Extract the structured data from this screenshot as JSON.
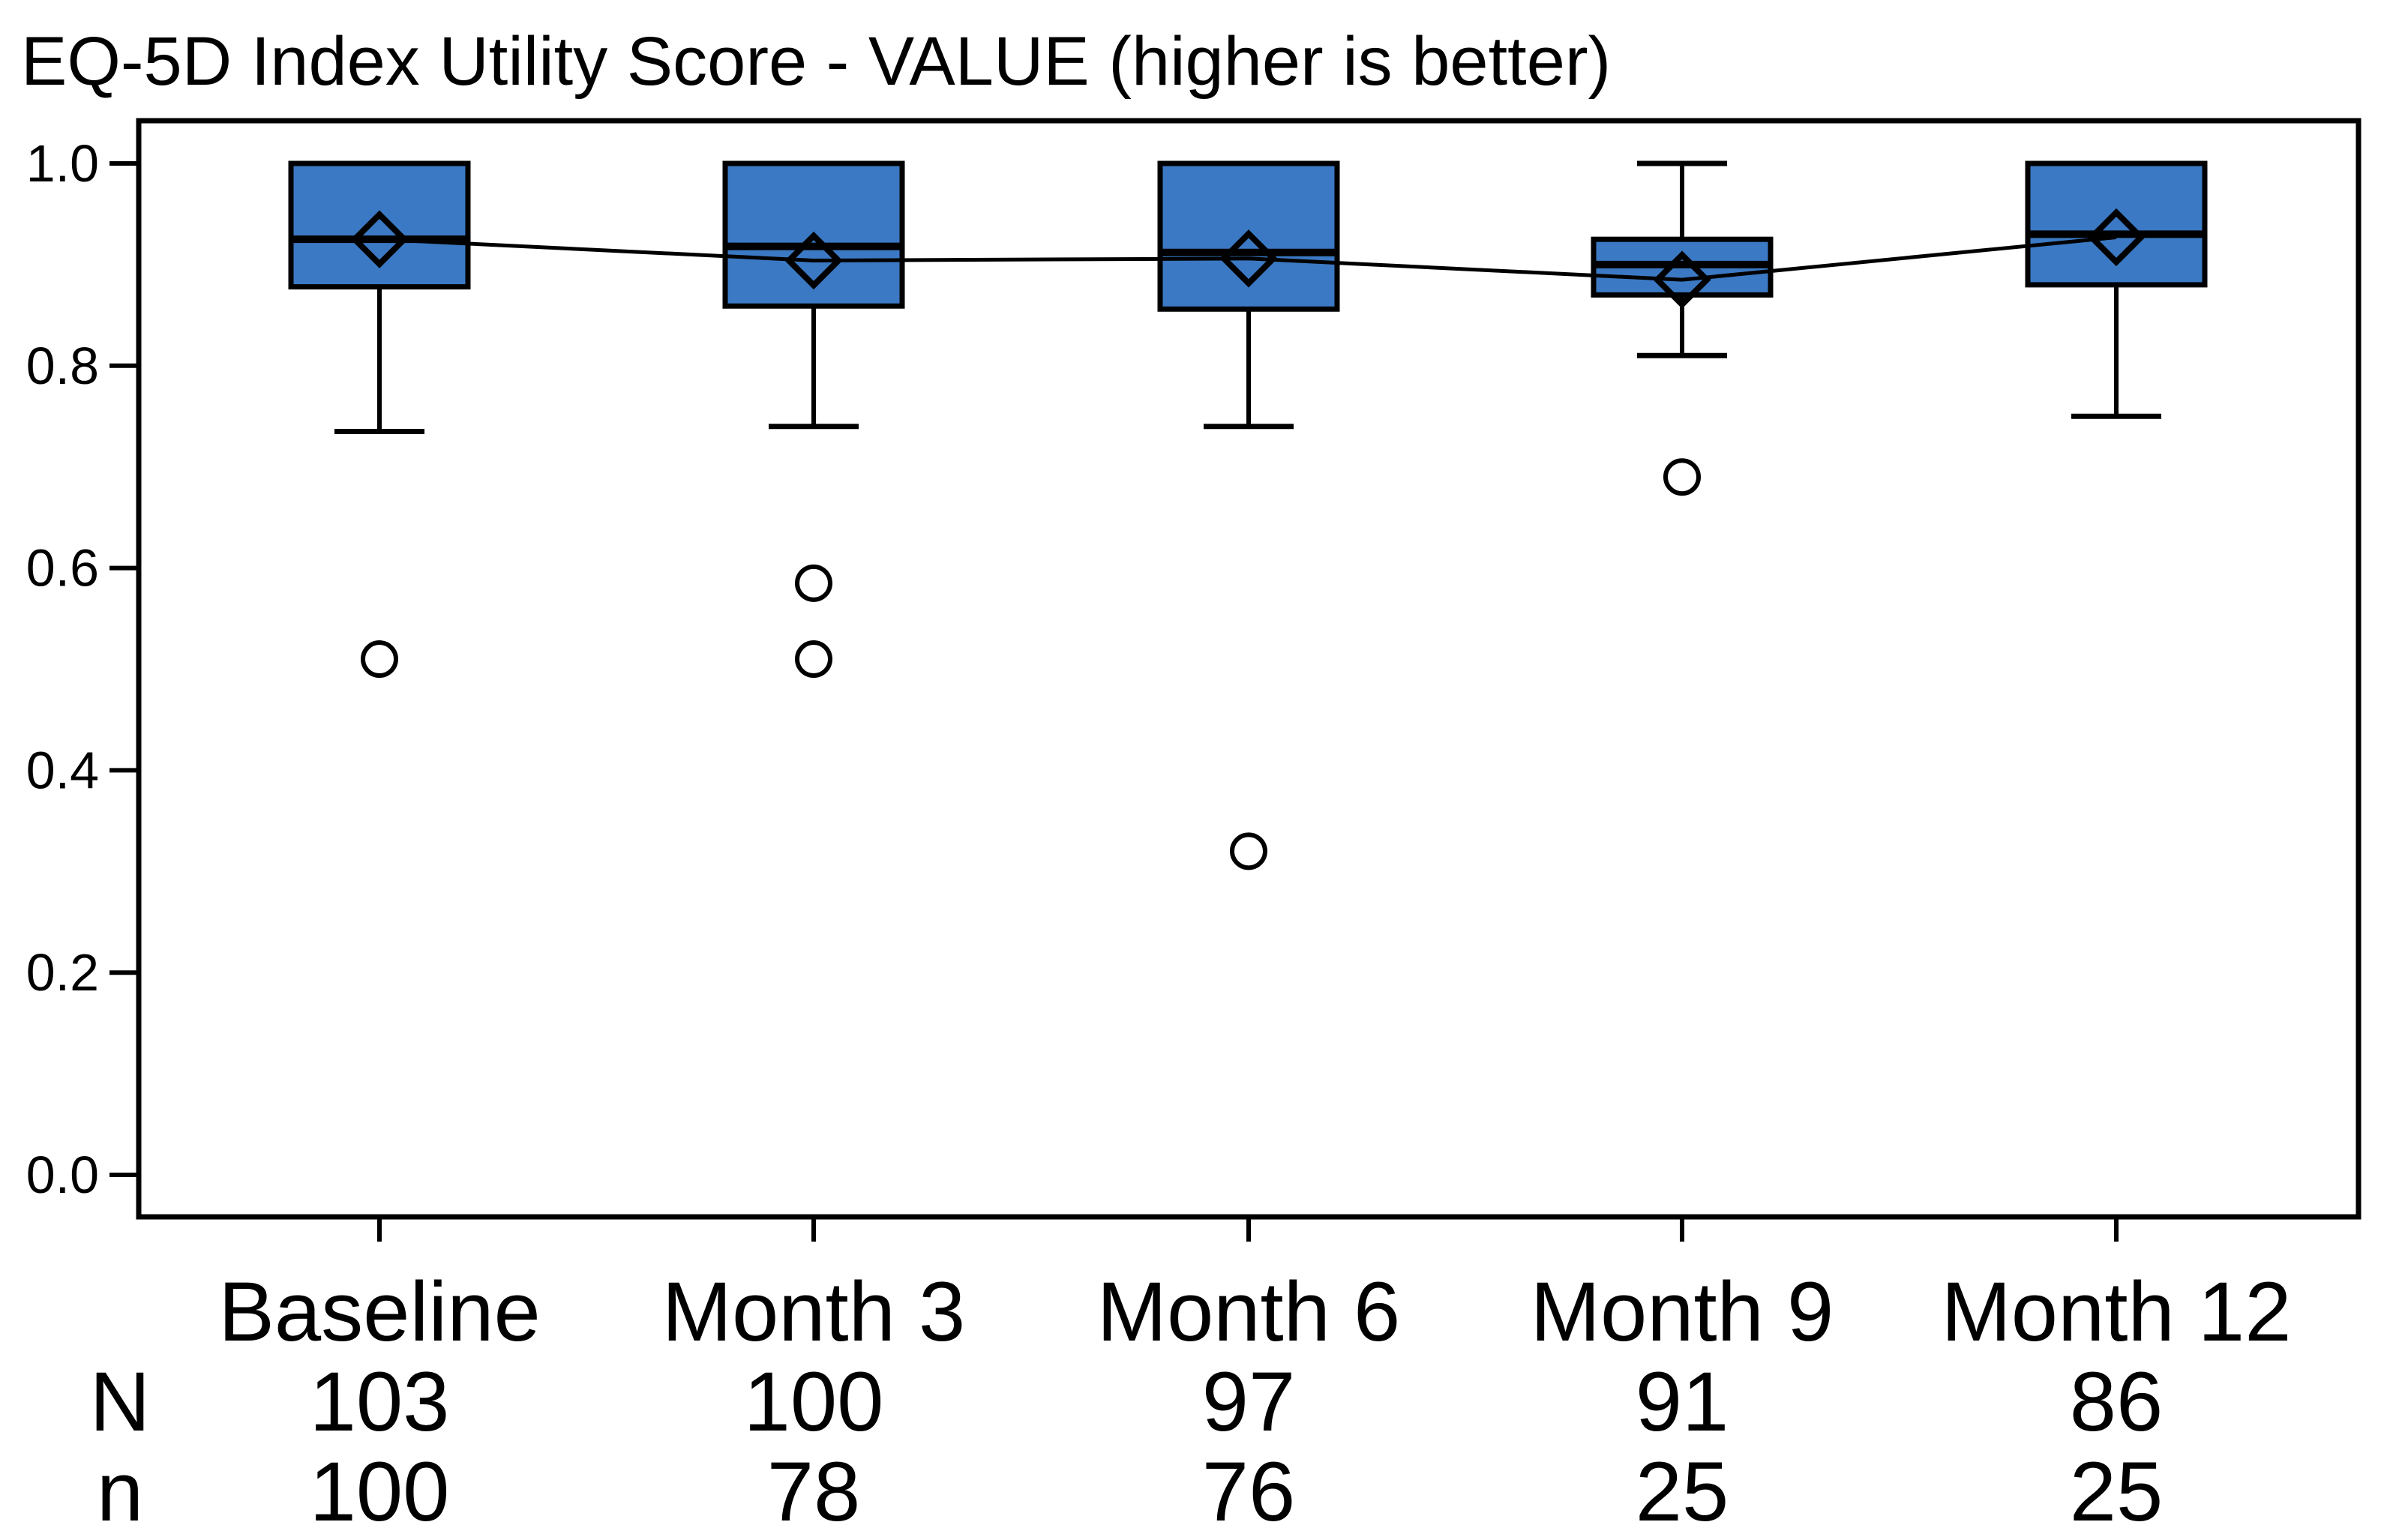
{
  "title": "EQ-5D Index Utility Score - VALUE (higher is better)",
  "colors": {
    "box_fill": "#3b79c4",
    "stroke": "#000000",
    "background": "#ffffff"
  },
  "chart_data": {
    "type": "boxplot",
    "title": "EQ-5D Index Utility Score - VALUE (higher is better)",
    "xlabel": "",
    "ylabel": "",
    "ylim": [
      -0.04,
      1.04
    ],
    "y_ticks": [
      0.0,
      0.2,
      0.4,
      0.6,
      0.8,
      1.0
    ],
    "grid": false,
    "legend": false,
    "categories": [
      "Baseline",
      "Month 3",
      "Month 6",
      "Month 9",
      "Month 12"
    ],
    "series": [
      {
        "category": "Baseline",
        "whisker_low": 0.735,
        "q1": 0.878,
        "median": 0.925,
        "q3": 1.0,
        "whisker_high": 1.0,
        "mean": 0.925,
        "outliers": [
          0.51
        ]
      },
      {
        "category": "Month 3",
        "whisker_low": 0.74,
        "q1": 0.859,
        "median": 0.918,
        "q3": 1.0,
        "whisker_high": 1.0,
        "mean": 0.904,
        "outliers": [
          0.585,
          0.51
        ]
      },
      {
        "category": "Month 6",
        "whisker_low": 0.74,
        "q1": 0.856,
        "median": 0.912,
        "q3": 1.0,
        "whisker_high": 1.0,
        "mean": 0.906,
        "outliers": [
          0.32
        ]
      },
      {
        "category": "Month 9",
        "whisker_low": 0.81,
        "q1": 0.87,
        "median": 0.9,
        "q3": 0.925,
        "whisker_high": 1.0,
        "mean": 0.885,
        "outliers": [
          0.69
        ]
      },
      {
        "category": "Month 12",
        "whisker_low": 0.75,
        "q1": 0.88,
        "median": 0.93,
        "q3": 1.0,
        "whisker_high": 1.0,
        "mean": 0.927,
        "outliers": []
      }
    ],
    "footer_rows": [
      {
        "label": "N",
        "values": [
          "103",
          "100",
          "97",
          "91",
          "86"
        ]
      },
      {
        "label": "n",
        "values": [
          "100",
          "78",
          "76",
          "25",
          "25"
        ]
      }
    ]
  }
}
